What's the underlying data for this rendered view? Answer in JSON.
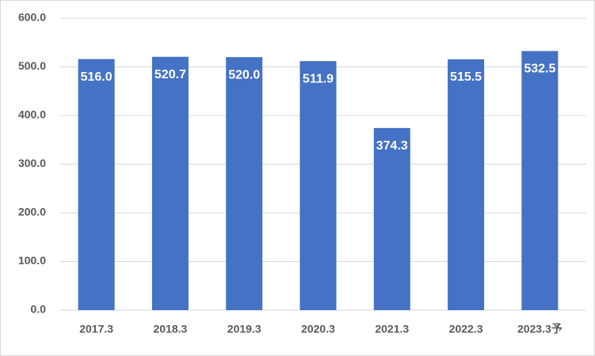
{
  "chart_data": {
    "type": "bar",
    "categories": [
      "2017.3",
      "2018.3",
      "2019.3",
      "2020.3",
      "2021.3",
      "2022.3",
      "2023.3予"
    ],
    "values": [
      516.0,
      520.7,
      520.0,
      511.9,
      374.3,
      515.5,
      532.5
    ],
    "value_labels": [
      "516.0",
      "520.7",
      "520.0",
      "511.9",
      "374.3",
      "515.5",
      "532.5"
    ],
    "color": "#4472c4",
    "ylim": [
      0,
      600
    ],
    "yticks": [
      {
        "value": 0,
        "label": "0.0"
      },
      {
        "value": 100,
        "label": "100.0"
      },
      {
        "value": 200,
        "label": "200.0"
      },
      {
        "value": 300,
        "label": "300.0"
      },
      {
        "value": 400,
        "label": "400.0"
      },
      {
        "value": 500,
        "label": "500.0"
      },
      {
        "value": 600,
        "label": "600.0"
      }
    ],
    "grid": true
  }
}
